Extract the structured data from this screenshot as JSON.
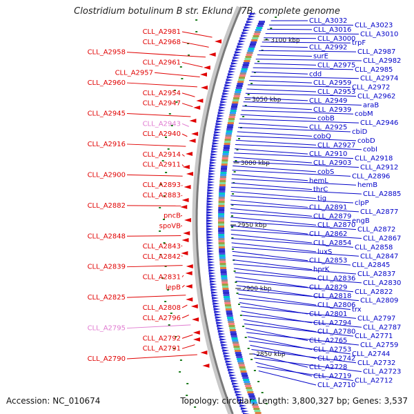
{
  "title": "Clostridium botulinum B str. Eklund 17B, complete genome",
  "footer": {
    "accession": "Accession: NC_010674",
    "summary": "Topology: circular; Length: 3,800,327 bp; Genes: 3,537"
  },
  "colors": {
    "reverse_label": "#e00000",
    "reverse_label_faded": "#e07ad0",
    "forward_label": "#0000c8",
    "reverse_feature": "#e00000",
    "forward_feature": "#2222d0",
    "backbone": "#7a7a7a",
    "tick": "#1a7a1a"
  },
  "tick_labels": [
    "3100 kbp",
    "3050 kbp",
    "3000 kbp",
    "2950 kbp",
    "2900 kbp",
    "2850 kbp"
  ],
  "left_labels": [
    {
      "text": "CLL_A2981",
      "faded": false
    },
    {
      "text": "CLL_A2968",
      "faded": false
    },
    {
      "text": "CLL_A2958",
      "faded": false
    },
    {
      "text": "CLL_A2961",
      "faded": false
    },
    {
      "text": "CLL_A2957",
      "faded": false
    },
    {
      "text": "CLL_A2960",
      "faded": false
    },
    {
      "text": "CLL_A2954",
      "faded": false
    },
    {
      "text": "CLL_A2947",
      "faded": false
    },
    {
      "text": "CLL_A2945",
      "faded": false
    },
    {
      "text": "CLL_A2943",
      "faded": true
    },
    {
      "text": "CLL_A2940",
      "faded": false
    },
    {
      "text": "CLL_A2916",
      "faded": false
    },
    {
      "text": "CLL_A2914",
      "faded": false
    },
    {
      "text": "CLL_A2911",
      "faded": false
    },
    {
      "text": "CLL_A2900",
      "faded": false
    },
    {
      "text": "CLL_A2893",
      "faded": false
    },
    {
      "text": "CLL_A2883",
      "faded": false
    },
    {
      "text": "CLL_A2882",
      "faded": false
    },
    {
      "text": "pncB",
      "faded": false
    },
    {
      "text": "spoVB",
      "faded": false
    },
    {
      "text": "CLL_A2848",
      "faded": false
    },
    {
      "text": "CLL_A2843",
      "faded": false
    },
    {
      "text": "CLL_A2842",
      "faded": false
    },
    {
      "text": "CLL_A2839",
      "faded": false
    },
    {
      "text": "CLL_A2831",
      "faded": false
    },
    {
      "text": "lepB",
      "faded": false
    },
    {
      "text": "CLL_A2825",
      "faded": false
    },
    {
      "text": "CLL_A2808",
      "faded": false
    },
    {
      "text": "CLL_A2796",
      "faded": false
    },
    {
      "text": "CLL_A2795",
      "faded": true
    },
    {
      "text": "CLL_A2792",
      "faded": false
    },
    {
      "text": "CLL_A2791",
      "faded": false
    },
    {
      "text": "CLL_A2790",
      "faded": false
    }
  ],
  "right_labels": [
    "CLL_A3032",
    "CLL_A3023",
    "CLL_A3016",
    "CLL_A3010",
    "CLL_A3000",
    "trpF",
    "CLL_A2992",
    "CLL_A2987",
    "surE",
    "CLL_A2982",
    "CLL_A2975",
    "CLL_A2985",
    "cdd",
    "CLL_A2974",
    "CLL_A2959",
    "CLL_A2972",
    "CLL_A2953",
    "CLL_A2962",
    "CLL_A2949",
    "araB",
    "CLL_A2939",
    "cobM",
    "cobB",
    "CLL_A2946",
    "CLL_A2925",
    "cbiD",
    "cobQ",
    "cobD",
    "CLL_A2927",
    "cobI",
    "CLL_A2910",
    "CLL_A2918",
    "CLL_A2903",
    "CLL_A2912",
    "cobS",
    "CLL_A2896",
    "hemL",
    "hemB",
    "thrC",
    "CLL_A2885",
    "tig",
    "clpP",
    "CLL_A2891",
    "CLL_A2877",
    "CLL_A2879",
    "engB",
    "CLL_A2870",
    "CLL_A2872",
    "CLL_A2862",
    "CLL_A2867",
    "CLL_A2854",
    "CLL_A2858",
    "luxS",
    "CLL_A2847",
    "CLL_A2853",
    "CLL_A2845",
    "hprK",
    "CLL_A2837",
    "CLL_A2836",
    "CLL_A2830",
    "CLL_A2829",
    "CLL_A2822",
    "CLL_A2818",
    "CLL_A2809",
    "CLL_A2806",
    "trx",
    "CLL_A2801",
    "CLL_A2797",
    "CLL_A2794",
    "CLL_A2787",
    "CLL_A2780",
    "CLL_A2771",
    "CLL_A2765",
    "CLL_A2759",
    "CLL_A2753",
    "CLL_A2744",
    "CLL_A2742",
    "CLL_A2732",
    "CLL_A2728",
    "CLL_A2723",
    "CLL_A2719",
    "CLL_A2712",
    "CLL_A2710"
  ]
}
